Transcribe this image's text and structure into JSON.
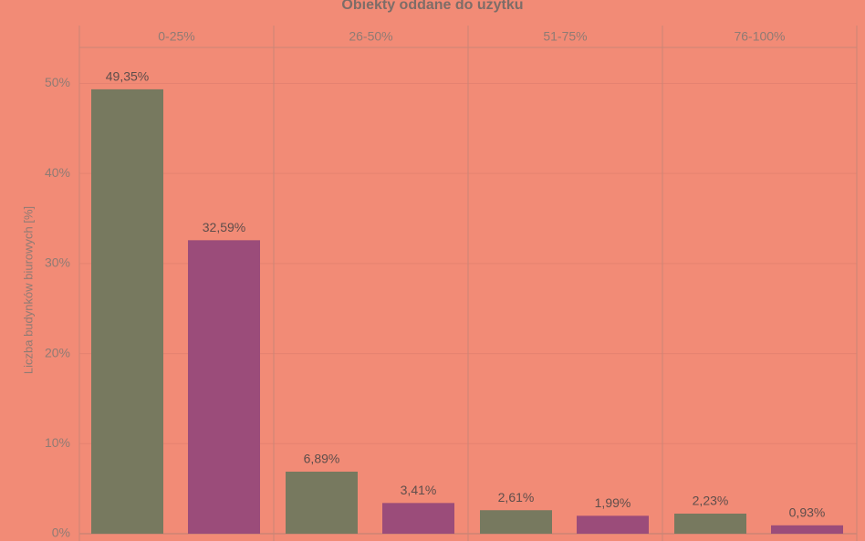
{
  "chart_data": {
    "type": "bar",
    "title": "Obiekty oddane do użytku",
    "y_label": "Liczba budynków biurowych [%]",
    "categories": [
      "0-25%",
      "26-50%",
      "51-75%",
      "76-100%"
    ],
    "series": [
      {
        "color": "#77795f",
        "values": [
          49.35,
          6.89,
          2.61,
          2.23
        ],
        "value_labels": [
          "49,35%",
          "6,89%",
          "2,61%",
          "2,23%"
        ]
      },
      {
        "color": "#9b4c7a",
        "values": [
          32.59,
          3.41,
          1.99,
          0.93
        ],
        "value_labels": [
          "32,59%",
          "3,41%",
          "1,99%",
          "0,93%"
        ]
      }
    ],
    "ylim": [
      0,
      54
    ],
    "yticks": [
      {
        "value": 0,
        "label": "0%"
      },
      {
        "value": 10,
        "label": "10%"
      },
      {
        "value": 20,
        "label": "20%"
      },
      {
        "value": 30,
        "label": "30%"
      },
      {
        "value": 40,
        "label": "40%"
      },
      {
        "value": 50,
        "label": "50%"
      }
    ],
    "grid": true
  }
}
